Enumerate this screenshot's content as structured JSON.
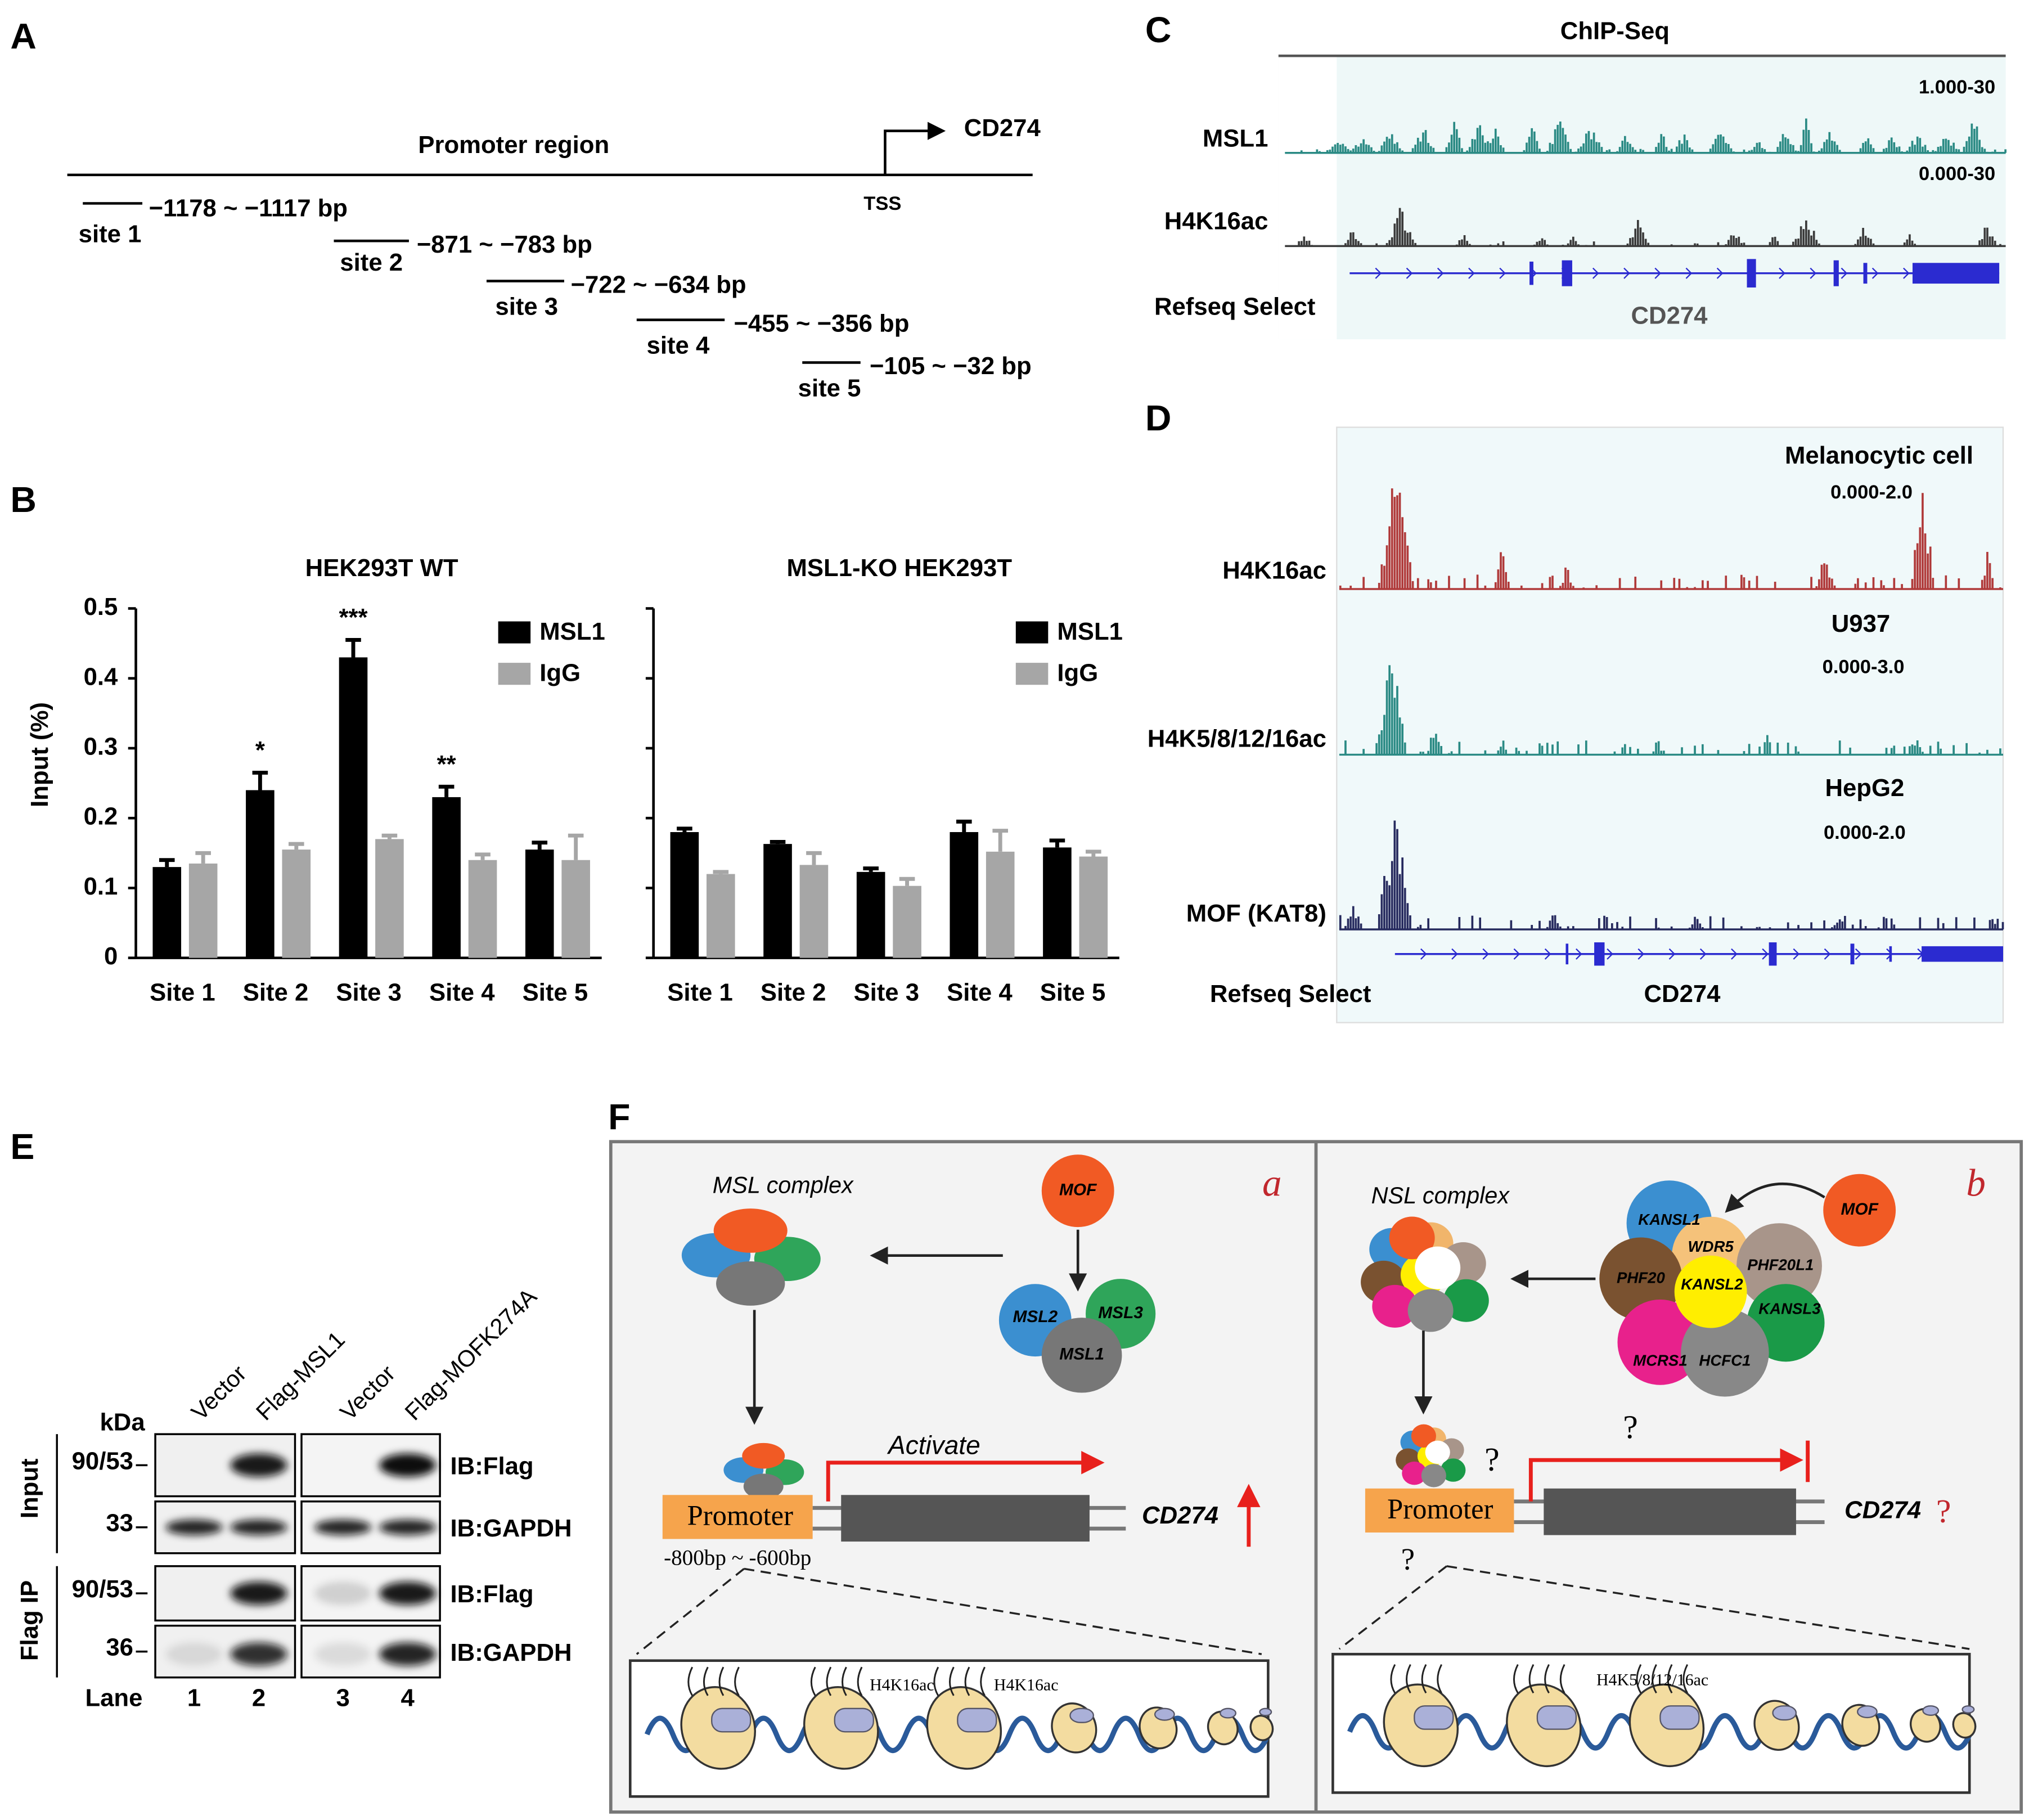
{
  "panel_labels": [
    "A",
    "B",
    "C",
    "D",
    "E",
    "F"
  ],
  "promoter_map": {
    "title": "Promoter region",
    "gene": "CD274",
    "tss": "TSS",
    "sites": [
      {
        "name": "site 1",
        "range": "−1178 ~ −1117 bp"
      },
      {
        "name": "site 2",
        "range": "−871 ~ −783 bp"
      },
      {
        "name": "site 3",
        "range": "−722 ~ −634 bp"
      },
      {
        "name": "site 4",
        "range": "−455 ~ −356 bp"
      },
      {
        "name": "site 5",
        "range": "−105 ~ −32 bp"
      }
    ]
  },
  "chart_data": [
    {
      "type": "bar",
      "title": "HEK293T WT",
      "ylabel": "Input (%)",
      "show_ytick_labels": true,
      "categories": [
        "Site 1",
        "Site 2",
        "Site 3",
        "Site 4",
        "Site 5"
      ],
      "series": [
        {
          "name": "MSL1",
          "color": "#000000",
          "values": [
            0.13,
            0.24,
            0.43,
            0.23,
            0.155
          ],
          "errors": [
            0.01,
            0.025,
            0.025,
            0.015,
            0.01
          ],
          "significance": [
            null,
            "*",
            "***",
            "**",
            null
          ]
        },
        {
          "name": "IgG",
          "color": "#a6a6a6",
          "values": [
            0.135,
            0.155,
            0.17,
            0.14,
            0.14
          ],
          "errors": [
            0.015,
            0.008,
            0.005,
            0.008,
            0.035
          ]
        }
      ],
      "ylim": [
        0,
        0.5
      ],
      "yticks": [
        0,
        0.1,
        0.2,
        0.3,
        0.4,
        0.5
      ]
    },
    {
      "type": "bar",
      "title": "MSL1-KO HEK293T",
      "show_ytick_labels": false,
      "categories": [
        "Site 1",
        "Site 2",
        "Site 3",
        "Site 4",
        "Site 5"
      ],
      "series": [
        {
          "name": "MSL1",
          "color": "#000000",
          "values": [
            0.18,
            0.163,
            0.123,
            0.18,
            0.158
          ],
          "errors": [
            0.005,
            0.003,
            0.005,
            0.015,
            0.01
          ]
        },
        {
          "name": "IgG",
          "color": "#a6a6a6",
          "values": [
            0.12,
            0.133,
            0.103,
            0.152,
            0.145
          ],
          "errors": [
            0.003,
            0.017,
            0.01,
            0.03,
            0.007
          ]
        }
      ],
      "ylim": [
        0,
        0.5
      ],
      "yticks": [
        0,
        0.1,
        0.2,
        0.3,
        0.4,
        0.5
      ]
    }
  ],
  "chipseq": {
    "title": "ChIP-Seq",
    "tracks": [
      {
        "name": "MSL1",
        "scale": "1.000-30"
      },
      {
        "name": "H4K16ac",
        "scale": "0.000-30"
      }
    ],
    "refseq": "Refseq Select",
    "gene": "CD274"
  },
  "cell_tracks": {
    "tracks": [
      {
        "name": "H4K16ac",
        "cell": "Melanocytic cell",
        "scale": "0.000-2.0"
      },
      {
        "name": "H4K5/8/12/16ac",
        "cell": "U937",
        "scale": "0.000-3.0"
      },
      {
        "name": "MOF (KAT8)",
        "cell": "HepG2",
        "scale": "0.000-2.0"
      }
    ],
    "refseq": "Refseq Select",
    "gene": "CD274"
  },
  "western": {
    "columns": [
      "Vector",
      "Flag-MSL1",
      "Vector",
      "Flag-MOFK274A"
    ],
    "kda": "kDa",
    "groups": [
      {
        "name": "Input",
        "rows": [
          {
            "marker": "90/53",
            "ib": "IB:Flag"
          },
          {
            "marker": "33",
            "ib": "IB:GAPDH"
          }
        ]
      },
      {
        "name": "Flag IP",
        "rows": [
          {
            "marker": "90/53",
            "ib": "IB:Flag"
          },
          {
            "marker": "36",
            "ib": "IB:GAPDH"
          }
        ]
      }
    ],
    "lane_title": "Lane",
    "lanes": [
      "1",
      "2",
      "3",
      "4"
    ]
  },
  "model": {
    "a": {
      "letter": "a",
      "title": "MSL complex",
      "mof": "MOF",
      "subunits": [
        "MSL2",
        "MSL3",
        "MSL1"
      ],
      "action": "Activate",
      "promoter": "Promoter",
      "gene": "CD274",
      "region": "-800bp ~ -600bp",
      "marks": [
        "H4K16ac",
        "H4K16ac"
      ]
    },
    "b": {
      "letter": "b",
      "title": "NSL complex",
      "mof": "MOF",
      "subunits": [
        "KANSL1",
        "WDR5",
        "PHF20L1",
        "PHF20",
        "KANSL2",
        "KANSL3",
        "MCRS1",
        "HCFC1"
      ],
      "questions": [
        "?",
        "?",
        "?",
        "?"
      ],
      "promoter": "Promoter",
      "gene": "CD274",
      "mark": "H4K5/8/12/16ac"
    }
  }
}
